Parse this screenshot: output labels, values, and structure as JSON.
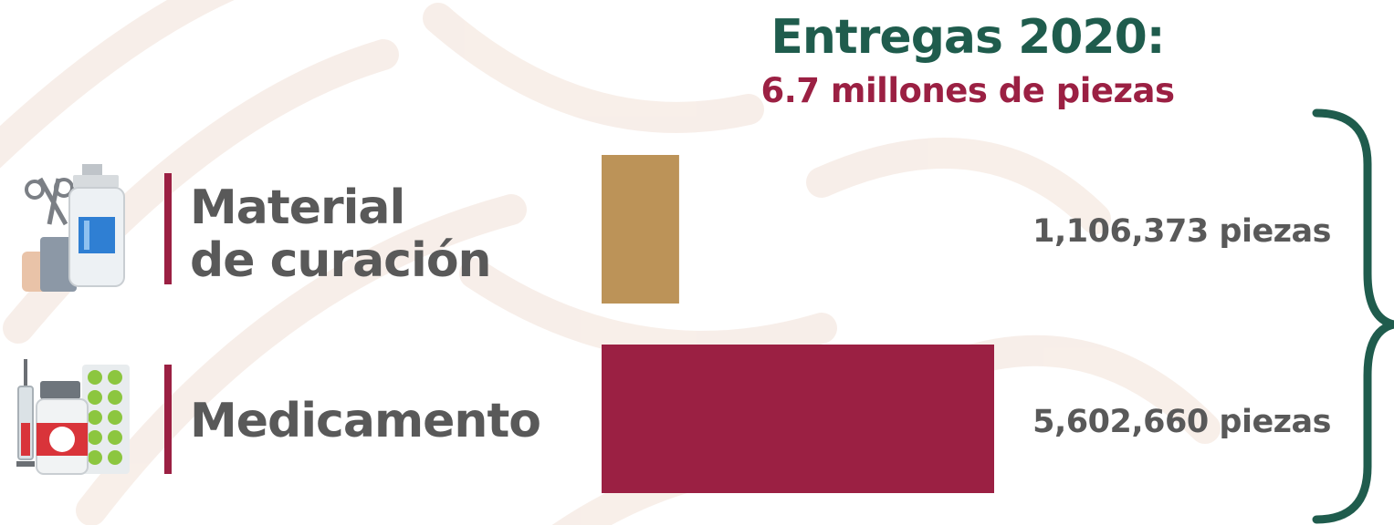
{
  "colors": {
    "title": "#1f5c4d",
    "subtitle": "#9b2043",
    "accent_line": "#9b2043",
    "text": "#595959",
    "bar_material": "#bc9358",
    "bar_medicamento": "#9b2043",
    "brace": "#1f5c4d",
    "watermark": "#f7ede7"
  },
  "chart_data": {
    "type": "bar",
    "orientation": "horizontal",
    "title": "Entregas 2020:",
    "subtitle": "6.7 millones de piezas",
    "categories": [
      {
        "line1": "Material",
        "line2": "de curación",
        "icon": "medical-supplies-icon"
      },
      {
        "line1": "Medicamento",
        "line2": "",
        "icon": "medicine-icon"
      }
    ],
    "values": [
      1106373,
      5602660
    ],
    "value_labels": [
      "1,106,373 piezas",
      "5,602,660 piezas"
    ],
    "bar_colors": [
      "#bc9358",
      "#9b2043"
    ],
    "xlim": [
      0,
      5602660
    ],
    "legend": "none",
    "grid": false
  }
}
